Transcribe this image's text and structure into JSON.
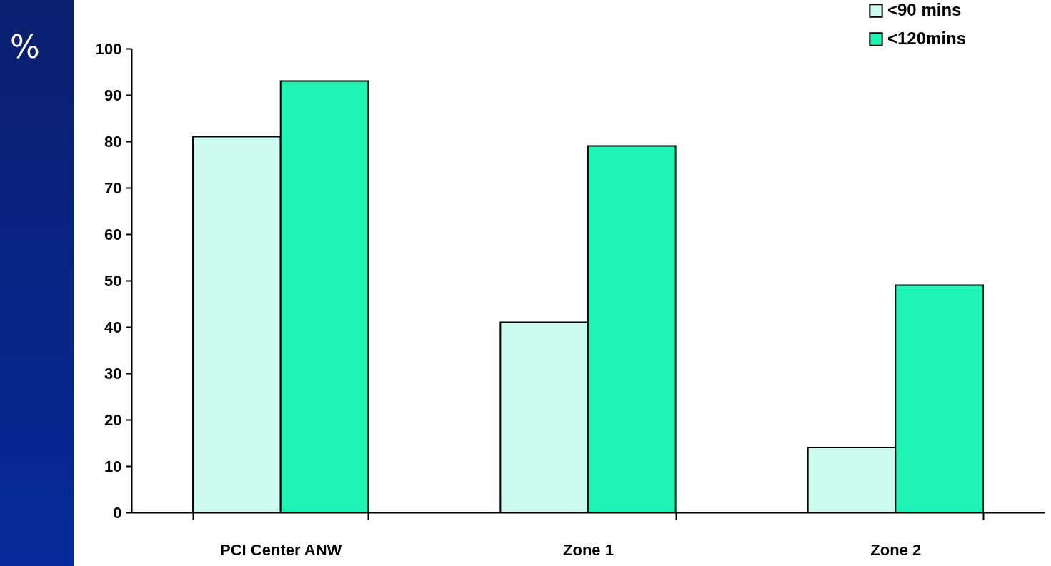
{
  "chart_data": {
    "type": "bar",
    "ylabel": "%",
    "categories": [
      "PCI Center ANW",
      "Zone 1",
      "Zone 2"
    ],
    "series": [
      {
        "name": "<90 mins",
        "color": "#ccfcef",
        "values": [
          81,
          41,
          14
        ]
      },
      {
        "name": "<120mins",
        "color": "#1ef5b5",
        "values": [
          93,
          79,
          49
        ]
      }
    ],
    "ylim": [
      0,
      100
    ],
    "yticks": [
      0,
      10,
      20,
      30,
      40,
      50,
      60,
      70,
      80,
      90,
      100
    ],
    "grid": false,
    "legend": "top right"
  }
}
